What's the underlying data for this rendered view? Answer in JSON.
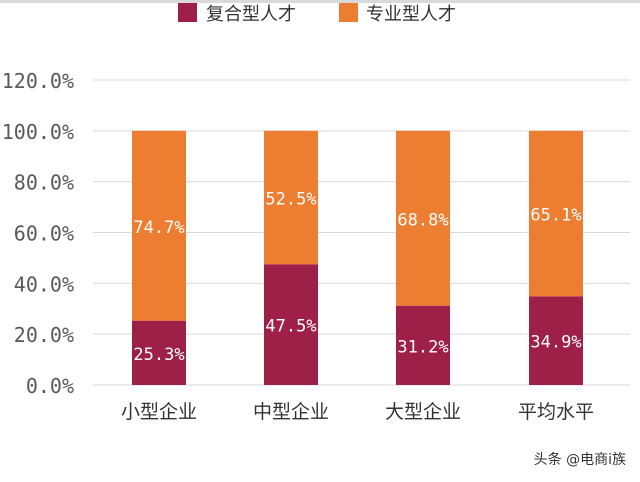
{
  "chart_data": {
    "type": "bar",
    "stacked": true,
    "categories": [
      "小型企业",
      "中型企业",
      "大型企业",
      "平均水平"
    ],
    "series": [
      {
        "name": "复合型人才",
        "color": "#9e1f47",
        "values": [
          25.3,
          47.5,
          31.2,
          34.9
        ],
        "labels": [
          "25.3%",
          "47.5%",
          "31.2%",
          "34.9%"
        ]
      },
      {
        "name": "专业型人才",
        "color": "#ed7d31",
        "values": [
          74.7,
          52.5,
          68.8,
          65.1
        ],
        "labels": [
          "74.7%",
          "52.5%",
          "68.8%",
          "65.1%"
        ]
      }
    ],
    "y_ticks": [
      "0.0%",
      "20.0%",
      "40.0%",
      "60.0%",
      "80.0%",
      "100.0%",
      "120.0%"
    ],
    "ylim": [
      0,
      120
    ],
    "grid": true,
    "legend_position": "top"
  },
  "watermark": "头条 @电商i族"
}
